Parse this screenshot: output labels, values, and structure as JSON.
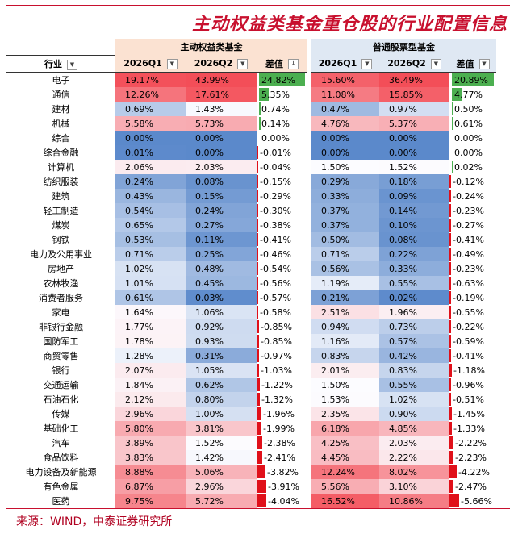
{
  "title": "主动权益类基金重仓股的行业配置信息",
  "source": "来源：WIND，中泰证券研究所",
  "groups": {
    "active": "主动权益类基金",
    "stock": "普通股票型基金"
  },
  "headers": {
    "industry": "行业",
    "q1": "2026Q1",
    "q2": "2026Q2",
    "diff": "差值"
  },
  "rows": [
    {
      "ind": "电子",
      "a1": "19.17%",
      "a2": "43.99%",
      "ad": "24.82%",
      "s1": "15.60%",
      "s2": "36.49%",
      "sd": "20.89%"
    },
    {
      "ind": "通信",
      "a1": "12.26%",
      "a2": "17.61%",
      "ad": "5.35%",
      "s1": "11.08%",
      "s2": "15.85%",
      "sd": "4.77%"
    },
    {
      "ind": "建材",
      "a1": "0.69%",
      "a2": "1.43%",
      "ad": "0.74%",
      "s1": "0.47%",
      "s2": "0.97%",
      "sd": "0.50%"
    },
    {
      "ind": "机械",
      "a1": "5.58%",
      "a2": "5.73%",
      "ad": "0.14%",
      "s1": "4.76%",
      "s2": "5.37%",
      "sd": "0.61%"
    },
    {
      "ind": "综合",
      "a1": "0.00%",
      "a2": "0.00%",
      "ad": "0.00%",
      "s1": "0.00%",
      "s2": "0.00%",
      "sd": "0.00%"
    },
    {
      "ind": "综合金融",
      "a1": "0.01%",
      "a2": "0.00%",
      "ad": "-0.01%",
      "s1": "0.00%",
      "s2": "0.00%",
      "sd": "0.00%"
    },
    {
      "ind": "计算机",
      "a1": "2.06%",
      "a2": "2.03%",
      "ad": "-0.04%",
      "s1": "1.50%",
      "s2": "1.52%",
      "sd": "0.02%"
    },
    {
      "ind": "纺织服装",
      "a1": "0.24%",
      "a2": "0.08%",
      "ad": "-0.15%",
      "s1": "0.29%",
      "s2": "0.18%",
      "sd": "-0.12%"
    },
    {
      "ind": "建筑",
      "a1": "0.43%",
      "a2": "0.15%",
      "ad": "-0.29%",
      "s1": "0.33%",
      "s2": "0.09%",
      "sd": "-0.24%"
    },
    {
      "ind": "轻工制造",
      "a1": "0.54%",
      "a2": "0.24%",
      "ad": "-0.30%",
      "s1": "0.37%",
      "s2": "0.14%",
      "sd": "-0.23%"
    },
    {
      "ind": "煤炭",
      "a1": "0.65%",
      "a2": "0.27%",
      "ad": "-0.38%",
      "s1": "0.37%",
      "s2": "0.10%",
      "sd": "-0.27%"
    },
    {
      "ind": "钢铁",
      "a1": "0.53%",
      "a2": "0.11%",
      "ad": "-0.41%",
      "s1": "0.50%",
      "s2": "0.08%",
      "sd": "-0.41%"
    },
    {
      "ind": "电力及公用事业",
      "a1": "0.71%",
      "a2": "0.25%",
      "ad": "-0.46%",
      "s1": "0.71%",
      "s2": "0.22%",
      "sd": "-0.49%"
    },
    {
      "ind": "房地产",
      "a1": "1.02%",
      "a2": "0.48%",
      "ad": "-0.54%",
      "s1": "0.56%",
      "s2": "0.33%",
      "sd": "-0.23%"
    },
    {
      "ind": "农林牧渔",
      "a1": "1.01%",
      "a2": "0.45%",
      "ad": "-0.56%",
      "s1": "1.19%",
      "s2": "0.55%",
      "sd": "-0.63%"
    },
    {
      "ind": "消费者服务",
      "a1": "0.61%",
      "a2": "0.03%",
      "ad": "-0.57%",
      "s1": "0.21%",
      "s2": "0.02%",
      "sd": "-0.19%"
    },
    {
      "ind": "家电",
      "a1": "1.64%",
      "a2": "1.06%",
      "ad": "-0.58%",
      "s1": "2.51%",
      "s2": "1.96%",
      "sd": "-0.55%"
    },
    {
      "ind": "非银行金融",
      "a1": "1.77%",
      "a2": "0.92%",
      "ad": "-0.85%",
      "s1": "0.94%",
      "s2": "0.73%",
      "sd": "-0.22%"
    },
    {
      "ind": "国防军工",
      "a1": "1.78%",
      "a2": "0.93%",
      "ad": "-0.85%",
      "s1": "1.16%",
      "s2": "0.57%",
      "sd": "-0.59%"
    },
    {
      "ind": "商贸零售",
      "a1": "1.28%",
      "a2": "0.31%",
      "ad": "-0.97%",
      "s1": "0.83%",
      "s2": "0.42%",
      "sd": "-0.41%"
    },
    {
      "ind": "银行",
      "a1": "2.07%",
      "a2": "1.05%",
      "ad": "-1.03%",
      "s1": "2.01%",
      "s2": "0.83%",
      "sd": "-1.18%"
    },
    {
      "ind": "交通运输",
      "a1": "1.84%",
      "a2": "0.62%",
      "ad": "-1.22%",
      "s1": "1.50%",
      "s2": "0.55%",
      "sd": "-0.96%"
    },
    {
      "ind": "石油石化",
      "a1": "2.12%",
      "a2": "0.80%",
      "ad": "-1.32%",
      "s1": "1.53%",
      "s2": "1.02%",
      "sd": "-0.51%"
    },
    {
      "ind": "传媒",
      "a1": "2.96%",
      "a2": "1.00%",
      "ad": "-1.96%",
      "s1": "2.35%",
      "s2": "0.90%",
      "sd": "-1.45%"
    },
    {
      "ind": "基础化工",
      "a1": "5.80%",
      "a2": "3.81%",
      "ad": "-1.99%",
      "s1": "6.18%",
      "s2": "4.85%",
      "sd": "-1.33%"
    },
    {
      "ind": "汽车",
      "a1": "3.89%",
      "a2": "1.52%",
      "ad": "-2.38%",
      "s1": "4.25%",
      "s2": "2.03%",
      "sd": "-2.22%"
    },
    {
      "ind": "食品饮料",
      "a1": "3.83%",
      "a2": "1.42%",
      "ad": "-2.41%",
      "s1": "4.45%",
      "s2": "2.22%",
      "sd": "-2.23%"
    },
    {
      "ind": "电力设备及新能源",
      "a1": "8.88%",
      "a2": "5.06%",
      "ad": "-3.82%",
      "s1": "12.24%",
      "s2": "8.02%",
      "sd": "-4.22%"
    },
    {
      "ind": "有色金属",
      "a1": "6.87%",
      "a2": "2.96%",
      "ad": "-3.91%",
      "s1": "5.56%",
      "s2": "3.10%",
      "sd": "-2.47%"
    },
    {
      "ind": "医药",
      "a1": "9.75%",
      "a2": "5.72%",
      "ad": "-4.04%",
      "s1": "16.52%",
      "s2": "10.86%",
      "sd": "-5.66%"
    }
  ]
}
